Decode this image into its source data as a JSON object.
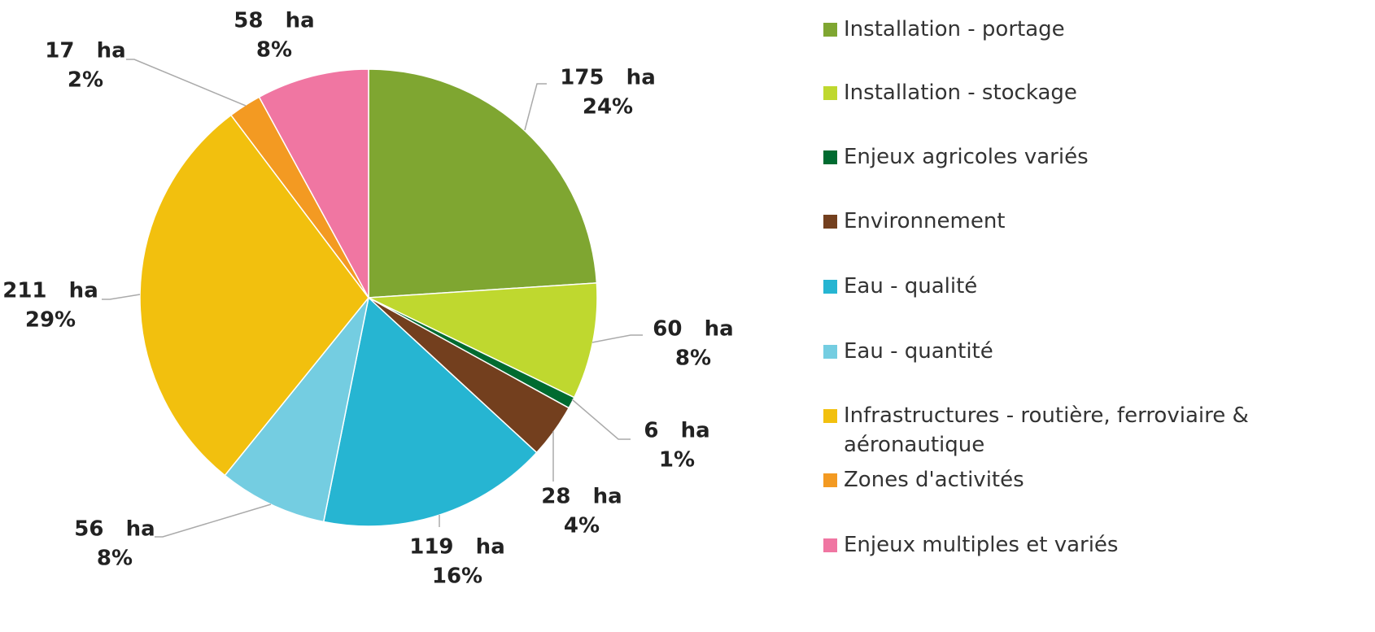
{
  "chart_data": {
    "type": "pie",
    "categories": [
      "Installation - portage",
      "Installation - stockage",
      "Enjeux agricoles variés",
      "Environnement",
      "Eau - qualité",
      "Eau - quantité",
      "Infrastructures - routière, ferroviaire & aéronautique",
      "Zones d'activités",
      "Enjeux multiples et variés"
    ],
    "values": [
      175,
      60,
      6,
      28,
      119,
      56,
      211,
      17,
      58
    ],
    "value_labels": [
      "175   ha",
      "60   ha",
      "6   ha",
      "28   ha",
      "119   ha",
      "56   ha",
      "211   ha",
      "17   ha",
      "58   ha"
    ],
    "percent_labels": [
      "24%",
      "8%",
      "1%",
      "4%",
      "16%",
      "8%",
      "29%",
      "2%",
      "8%"
    ],
    "colors": [
      "#7fa631",
      "#bfd82f",
      "#006b30",
      "#733f1e",
      "#26b5d2",
      "#74cde1",
      "#f2c00e",
      "#f39a22",
      "#f076a2"
    ],
    "legend": "right"
  }
}
